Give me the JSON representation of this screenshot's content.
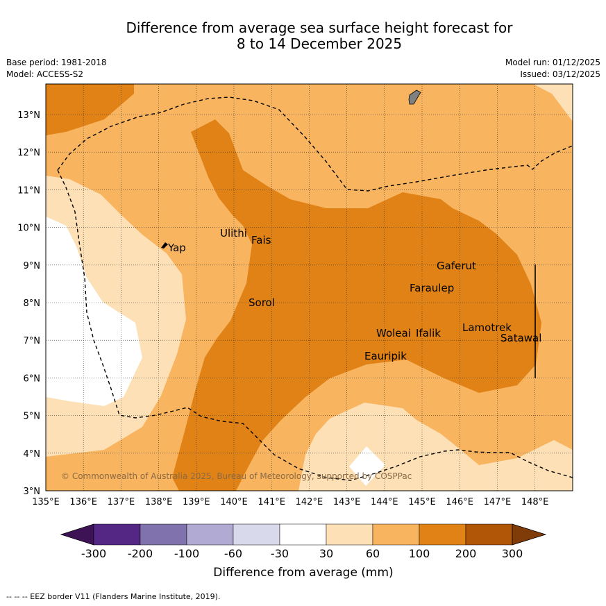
{
  "header": {
    "title_line1": "Difference from average sea surface height forecast for",
    "title_line2": "8 to 14 December 2025",
    "base_period": "Base period: 1981-2018",
    "model": "Model: ACCESS-S2",
    "model_run": "Model run: 01/12/2025",
    "issued": "Issued: 03/12/2025"
  },
  "map": {
    "lon_ticks": [
      "135°E",
      "136°E",
      "137°E",
      "138°E",
      "139°E",
      "140°E",
      "141°E",
      "142°E",
      "143°E",
      "144°E",
      "145°E",
      "146°E",
      "147°E",
      "148°E"
    ],
    "lat_ticks": [
      "3°N",
      "4°N",
      "5°N",
      "6°N",
      "7°N",
      "8°N",
      "9°N",
      "10°N",
      "11°N",
      "12°N",
      "13°N"
    ],
    "places": {
      "yap": "Yap",
      "ulithi": "Ulithi",
      "fais": "Fais",
      "sorol": "Sorol",
      "gaferut": "Gaferut",
      "faraulep": "Faraulep",
      "woleai": "Woleai",
      "ifalik": "Ifalik",
      "lamotrek": "Lamotrek",
      "satawal": "Satawal",
      "eauripik": "Eauripik"
    },
    "copyright": "© Commonwealth of Australia 2025, Bureau of Meteorology, supported by COSPPac",
    "colors": {
      "c30_60": "#fde0b6",
      "c60_100": "#f8b45f",
      "c100_200": "#e08216",
      "c200_300": "#b05606"
    }
  },
  "colorbar": {
    "labels": [
      "-300",
      "-200",
      "-100",
      "-60",
      "-30",
      "30",
      "60",
      "100",
      "200",
      "300"
    ],
    "colors": [
      "#3d1356",
      "#542785",
      "#8072ac",
      "#b1aad2",
      "#d9d9ec",
      "#ffffff",
      "#fde0b6",
      "#f8b45f",
      "#e08216",
      "#b05606",
      "#7f3b08"
    ],
    "title": "Difference from average (mm)"
  },
  "footnote": "-- -- -- EEZ border V11 (Flanders Marine Institute, 2019)."
}
